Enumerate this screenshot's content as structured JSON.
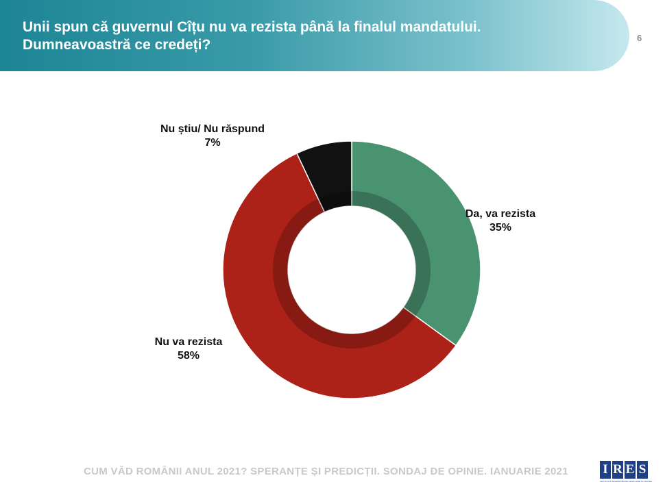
{
  "header": {
    "title_line1": "Unii spun că guvernul Cîțu nu va rezista până la finalul mandatului.",
    "title_line2": "Dumneavoastră ce credeți?",
    "page_number": "6",
    "banner_color": "#2a8e9d"
  },
  "chart_data": {
    "type": "pie",
    "donut": true,
    "slices": [
      {
        "label": "Da, va rezista",
        "value": 35,
        "value_label": "35%",
        "color": "#4a9370"
      },
      {
        "label": "Nu va rezista",
        "value": 58,
        "value_label": "58%",
        "color": "#ad2218"
      },
      {
        "label": "Nu știu/ Nu răspund",
        "value": 7,
        "value_label": "7%",
        "color": "#111111"
      }
    ]
  },
  "footer": {
    "text": "CUM VĂD ROMÂNII ANUL 2021? SPERANȚE ȘI PREDICȚII. SONDAJ DE OPINIE. IANUARIE 2021"
  },
  "logo": {
    "letters": [
      "I",
      "R",
      "E",
      "S"
    ],
    "tagline": "INSTITUTUL ROMÂN PENTRU EVALUARE ȘI STRATEGIE",
    "color": "#1f3f87"
  }
}
